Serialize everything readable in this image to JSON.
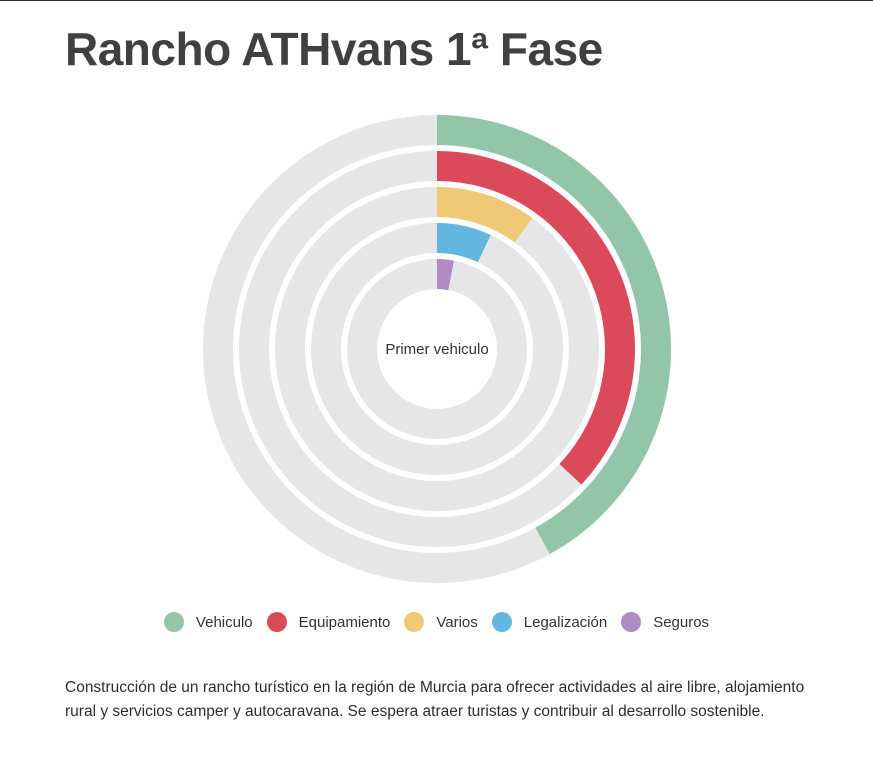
{
  "page": {
    "title": "Rancho ATHvans 1ª Fase",
    "description": "Construcción de un rancho turístico en la región de Murcia para ofrecer actividades al aire libre, alojamiento rural y servicios camper y autocaravana. Se espera atraer turistas y contribuir al desarrollo sostenible."
  },
  "chart_data": {
    "type": "radial-progress",
    "center_label": "Primer vehiculo",
    "track_color": "#e6e6e6",
    "series": [
      {
        "name": "Vehiculo",
        "color": "#93c5a8",
        "value_percent": 42
      },
      {
        "name": "Equipamiento",
        "color": "#db4a5a",
        "value_percent": 37
      },
      {
        "name": "Varios",
        "color": "#f0c977",
        "value_percent": 10
      },
      {
        "name": "Legalización",
        "color": "#62b6e0",
        "value_percent": 7
      },
      {
        "name": "Seguros",
        "color": "#ae8bc3",
        "value_percent": 3
      }
    ]
  }
}
